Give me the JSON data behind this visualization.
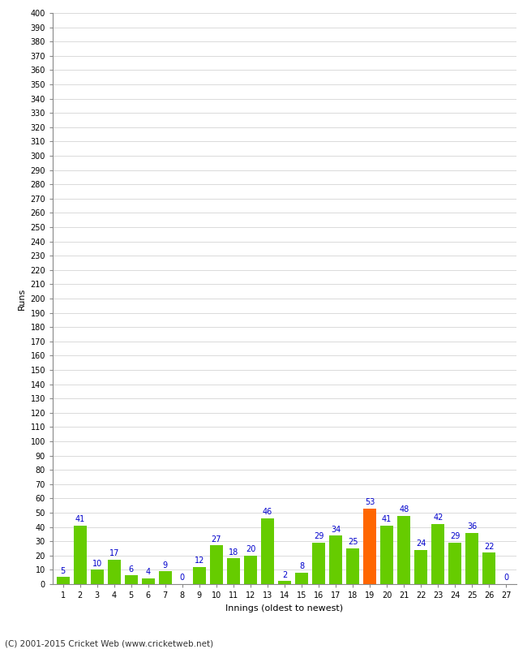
{
  "xlabel": "Innings (oldest to newest)",
  "ylabel": "Runs",
  "innings": [
    1,
    2,
    3,
    4,
    5,
    6,
    7,
    8,
    9,
    10,
    11,
    12,
    13,
    14,
    15,
    16,
    17,
    18,
    19,
    20,
    21,
    22,
    23,
    24,
    25,
    26,
    27
  ],
  "values": [
    5,
    41,
    10,
    17,
    6,
    4,
    9,
    0,
    12,
    27,
    18,
    20,
    46,
    2,
    8,
    29,
    34,
    25,
    53,
    41,
    48,
    24,
    42,
    29,
    36,
    22,
    0
  ],
  "bar_colors": [
    "#66cc00",
    "#66cc00",
    "#66cc00",
    "#66cc00",
    "#66cc00",
    "#66cc00",
    "#66cc00",
    "#66cc00",
    "#66cc00",
    "#66cc00",
    "#66cc00",
    "#66cc00",
    "#66cc00",
    "#66cc00",
    "#66cc00",
    "#66cc00",
    "#66cc00",
    "#66cc00",
    "#ff6600",
    "#66cc00",
    "#66cc00",
    "#66cc00",
    "#66cc00",
    "#66cc00",
    "#66cc00",
    "#66cc00",
    "#66cc00"
  ],
  "label_color": "#0000cc",
  "ytick_step": 10,
  "ylim": [
    0,
    400
  ],
  "footer": "(C) 2001-2015 Cricket Web (www.cricketweb.net)",
  "background_color": "#ffffff",
  "grid_color": "#cccccc"
}
